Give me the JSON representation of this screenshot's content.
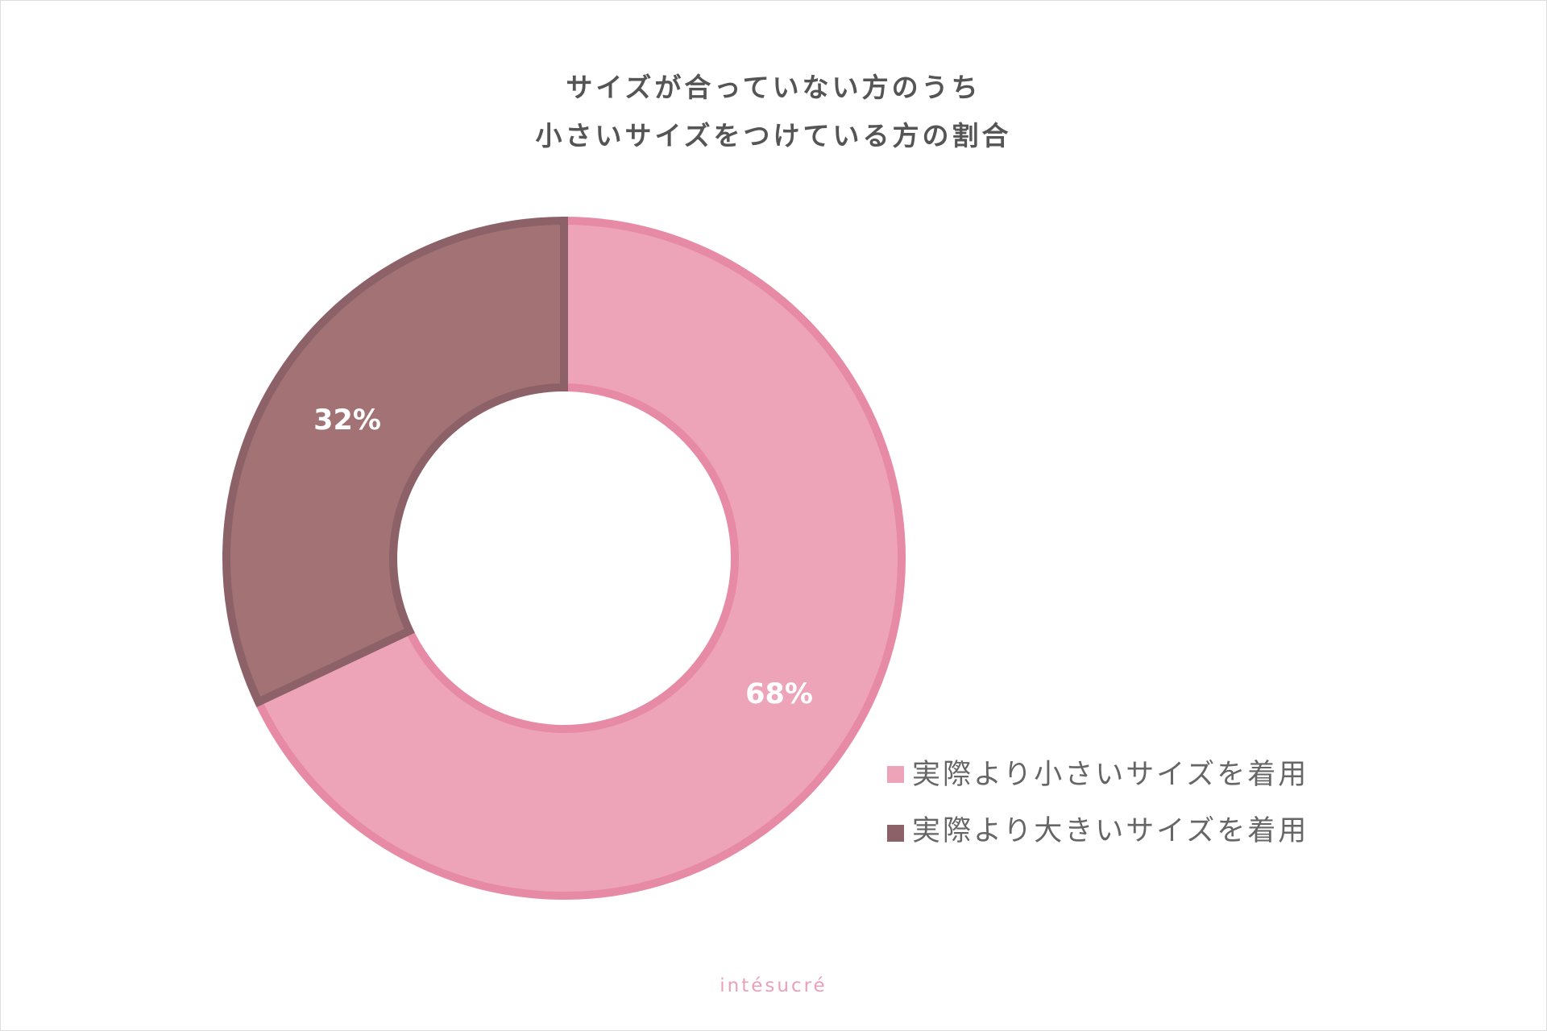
{
  "chart_data": {
    "type": "pie",
    "style": "donut",
    "title": [
      "サイズが合っていない方のうち",
      "小さいサイズをつけている方の割合"
    ],
    "slices": [
      {
        "name": "実際より小さいサイズを着用",
        "value": 68,
        "label": "68%",
        "color": "#eea4b8",
        "stroke": "#e68aa5"
      },
      {
        "name": "実際より大きいサイズを着用",
        "value": 32,
        "label": "32%",
        "color": "#a27275",
        "stroke": "#8d6168"
      }
    ],
    "legend": {
      "position": "bottom-right",
      "items": [
        {
          "label": "実際より小さいサイズを着用",
          "color": "#eea4b8"
        },
        {
          "label": "実際より大きいサイズを着用",
          "color": "#8d6168"
        }
      ]
    }
  },
  "brand": "intésucré"
}
